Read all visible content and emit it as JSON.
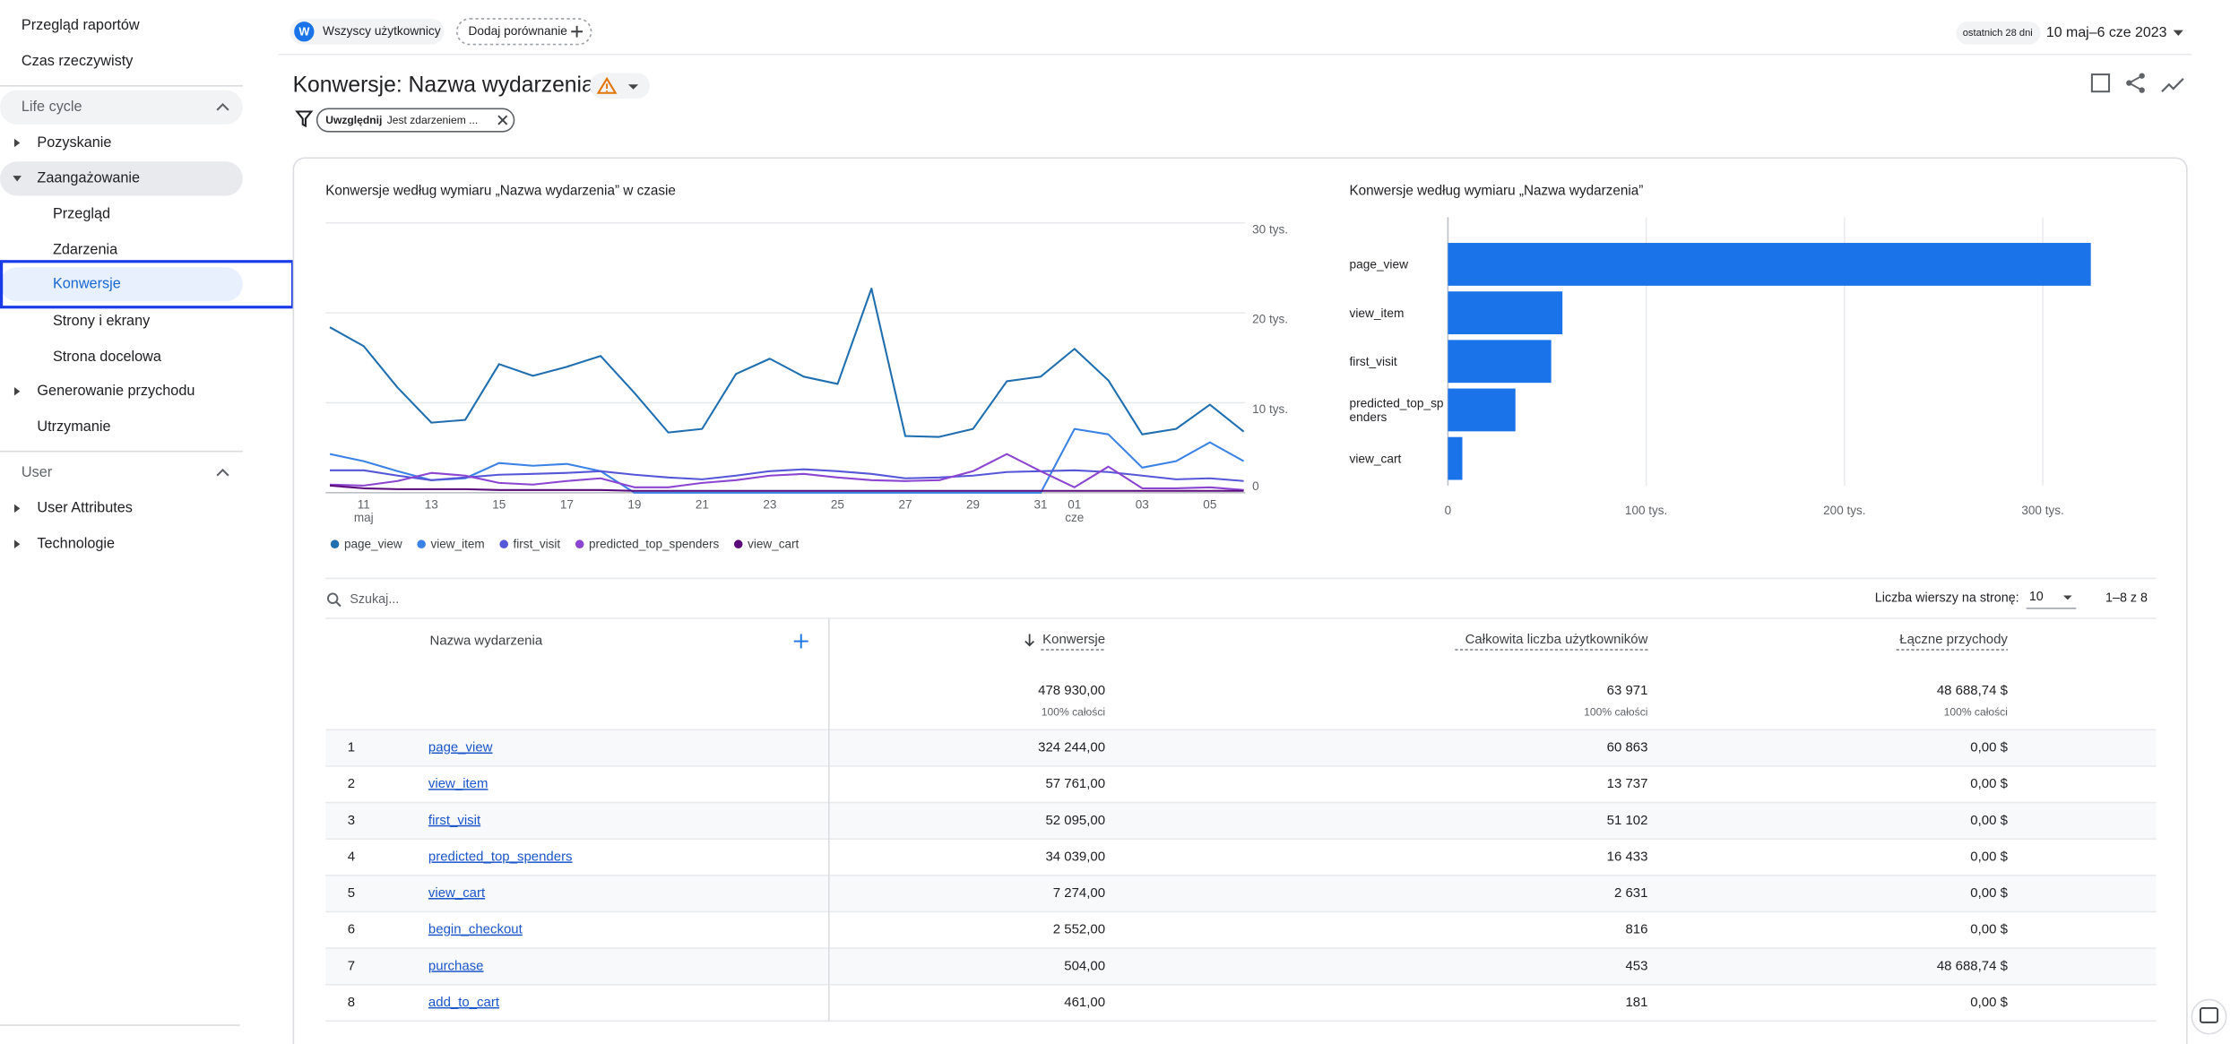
{
  "sidebar": {
    "items": [
      "Przegląd raportów",
      "Czas rzeczywisty",
      "Life cycle",
      "Pozyskanie",
      "Zaangażowanie",
      "Przegląd",
      "Zdarzenia",
      "Konwersje",
      "Strony i ekrany",
      "Strona docelowa",
      "Generowanie przychodu",
      "Utrzymanie",
      "User",
      "User Attributes",
      "Technologie"
    ]
  },
  "header": {
    "segment_avatar": "W",
    "segment": "Wszyscy użytkownicy",
    "compare": "Dodaj porównanie",
    "date_hint": "ostatnich 28 dni",
    "date_range": "10 maj–6 cze 2023"
  },
  "report": {
    "title": "Konwersje: Nazwa wydarzenia",
    "filter_label": "Uwzględnij",
    "filter_value": "Jest zdarzeniem ..."
  },
  "chart_data": [
    {
      "type": "line",
      "title": "Konwersje według wymiaru „Nazwa wydarzenia” w czasie",
      "categories": [
        null,
        "11",
        null,
        "13",
        null,
        "15",
        null,
        "17",
        null,
        "19",
        null,
        "21",
        null,
        "23",
        null,
        "25",
        null,
        "27",
        null,
        "29",
        null,
        "31",
        "01",
        null,
        "03",
        null,
        "05",
        null
      ],
      "month_labels": [
        null,
        "maj",
        null,
        null,
        null,
        null,
        null,
        null,
        null,
        null,
        null,
        null,
        null,
        null,
        null,
        null,
        null,
        null,
        null,
        null,
        null,
        null,
        "cze",
        null,
        null,
        null,
        null,
        null
      ],
      "series": [
        {
          "name": "page_view",
          "color": "#1f6fb0",
          "values": [
            18400,
            16300,
            11700,
            7800,
            8100,
            14300,
            13000,
            14000,
            15200,
            11100,
            6700,
            7100,
            13200,
            14900,
            12900,
            12100,
            22700,
            6300,
            6200,
            7100,
            12400,
            12900,
            16000,
            12500,
            6500,
            7100,
            9800,
            6800
          ]
        },
        {
          "name": "view_item",
          "color": "#3b82e6",
          "values": [
            4300,
            3500,
            2400,
            1400,
            1600,
            3300,
            3000,
            3200,
            2400,
            0,
            0,
            0,
            0,
            0,
            0,
            0,
            0,
            0,
            0,
            0,
            0,
            0,
            7100,
            6500,
            2800,
            3500,
            5600,
            3500
          ]
        },
        {
          "name": "first_visit",
          "color": "#5656d8",
          "values": [
            2500,
            2500,
            1900,
            1400,
            1700,
            2000,
            2100,
            2200,
            2400,
            2000,
            1700,
            1500,
            1900,
            2400,
            2600,
            2400,
            2100,
            1600,
            1700,
            1900,
            2300,
            2400,
            2500,
            2300,
            1900,
            1500,
            1600,
            1300
          ]
        },
        {
          "name": "predicted_top_spenders",
          "color": "#8b45d1",
          "values": [
            900,
            800,
            1300,
            2200,
            1900,
            1100,
            900,
            1300,
            1600,
            600,
            600,
            1100,
            1400,
            1900,
            2100,
            1700,
            1400,
            1300,
            1400,
            2400,
            4300,
            2400,
            600,
            2900,
            500,
            500,
            600,
            300
          ]
        },
        {
          "name": "view_cart",
          "color": "#5a0a7a",
          "values": [
            800,
            500,
            400,
            400,
            400,
            300,
            300,
            300,
            300,
            200,
            200,
            200,
            200,
            200,
            200,
            200,
            200,
            200,
            200,
            200,
            200,
            200,
            200,
            200,
            200,
            200,
            200,
            200
          ]
        }
      ],
      "ylim": [
        0,
        30000
      ],
      "yticks": [
        0,
        {
          "value": 10000,
          "label": "10 tys."
        },
        {
          "value": 20000,
          "label": "20 tys."
        },
        {
          "value": 30000,
          "label": "30 tys."
        }
      ],
      "grid": true,
      "legend": "bottom"
    },
    {
      "type": "bar",
      "orientation": "horizontal",
      "title": "Konwersje według wymiaru „Nazwa wydarzenia”",
      "categories": [
        "page_view",
        "view_item",
        "first_visit",
        "predicted_top_spenders",
        "view_cart"
      ],
      "values": [
        324244,
        57761,
        52095,
        34039,
        7274
      ],
      "color": "#1a73e8",
      "xlim": [
        0,
        350000
      ],
      "xticks": [
        0,
        {
          "value": 100000,
          "label": "100 tys."
        },
        {
          "value": 200000,
          "label": "200 tys."
        },
        {
          "value": 300000,
          "label": "300 tys."
        }
      ],
      "grid": true
    }
  ],
  "table": {
    "search_placeholder": "Szukaj...",
    "rows_per_page_label": "Liczba wierszy na stronę:",
    "rows_per_page": "10",
    "pagination": "1–8 z 8",
    "columns": [
      "Nazwa wydarzenia",
      "Konwersje",
      "Całkowita liczba użytkowników",
      "Łączne przychody"
    ],
    "totals": [
      "478 930,00",
      "63 971",
      "48 688,74 $"
    ],
    "totals_note": [
      "100% całości",
      "100% całości",
      "100% całości"
    ],
    "rows": [
      [
        "1",
        "page_view",
        "324 244,00",
        "60 863",
        "0,00 $"
      ],
      [
        "2",
        "view_item",
        "57 761,00",
        "13 737",
        "0,00 $"
      ],
      [
        "3",
        "first_visit",
        "52 095,00",
        "51 102",
        "0,00 $"
      ],
      [
        "4",
        "predicted_top_spenders",
        "34 039,00",
        "16 433",
        "0,00 $"
      ],
      [
        "5",
        "view_cart",
        "7 274,00",
        "2 631",
        "0,00 $"
      ],
      [
        "6",
        "begin_checkout",
        "2 552,00",
        "816",
        "0,00 $"
      ],
      [
        "7",
        "purchase",
        "504,00",
        "453",
        "48 688,74 $"
      ],
      [
        "8",
        "add_to_cart",
        "461,00",
        "181",
        "0,00 $"
      ]
    ]
  }
}
